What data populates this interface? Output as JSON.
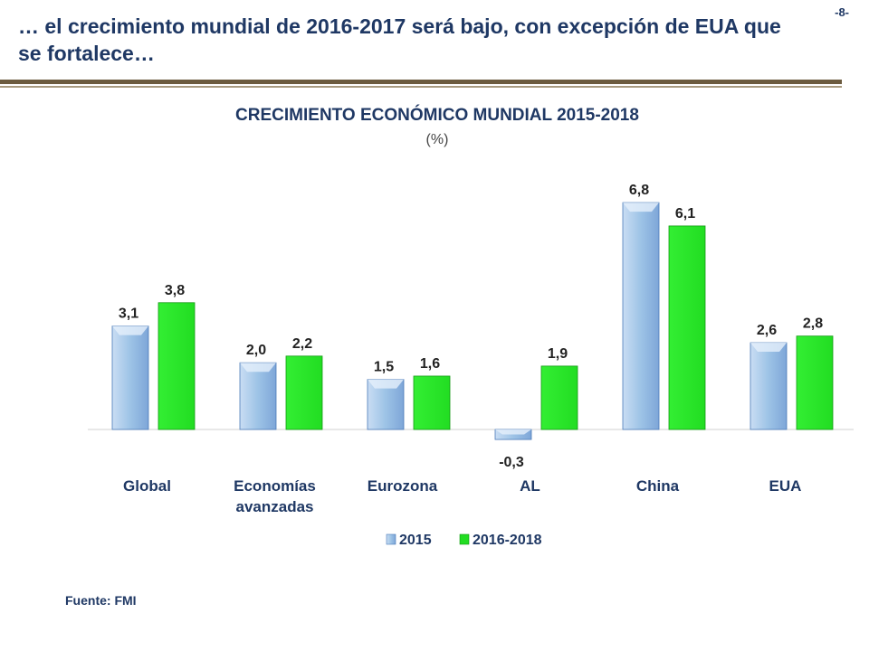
{
  "page": {
    "title": "… el crecimiento mundial de 2016-2017 será bajo, con excepción de EUA que se fortalece…",
    "page_number": "-8-",
    "source": "Fuente: FMI"
  },
  "colors": {
    "title": "#1f3864",
    "series_2015": "#9dc3e6",
    "series_2015_edge": "#4a7ab8",
    "series_2016_2018": "#22dd22",
    "series_2016_2018_edge": "#119911",
    "rule": "#6b5a3e"
  },
  "chart_data": {
    "type": "bar",
    "title": "CRECIMIENTO ECONÓMICO MUNDIAL 2015-2018",
    "subtitle": "(%)",
    "categories": [
      "Global",
      "Economías avanzadas",
      "Eurozona",
      "AL",
      "China",
      "EUA"
    ],
    "series": [
      {
        "name": "2015",
        "values": [
          3.1,
          2.0,
          1.5,
          -0.3,
          6.8,
          2.6
        ]
      },
      {
        "name": "2016-2018",
        "values": [
          3.8,
          2.2,
          1.6,
          1.9,
          6.1,
          2.8
        ]
      }
    ],
    "value_labels": [
      [
        "3,1",
        "2,0",
        "1,5",
        "-0,3",
        "6,8",
        "2,6"
      ],
      [
        "3,8",
        "2,2",
        "1,6",
        "1,9",
        "6,1",
        "2,8"
      ]
    ],
    "category_labels": [
      [
        "Global"
      ],
      [
        "Economías",
        "avanzadas"
      ],
      [
        "Eurozona"
      ],
      [
        "AL"
      ],
      [
        "China"
      ],
      [
        "EUA"
      ]
    ],
    "grid": false,
    "legend_position": "bottom"
  }
}
